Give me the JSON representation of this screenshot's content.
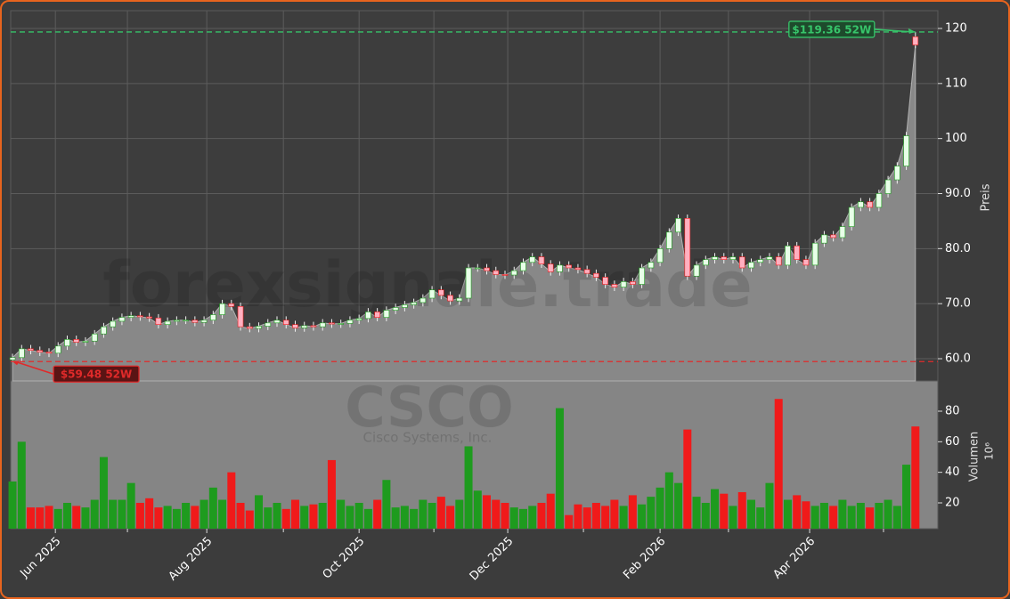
{
  "chart_data": {
    "type": "candlestick",
    "watermark": "forexsignale.trade",
    "symbol": "CSCO",
    "company": "Cisco Systems, Inc.",
    "ylabel": "Preis",
    "y2label": "Volumen",
    "y2unit": "10⁶",
    "xlim": [
      -0.2,
      101.46
    ],
    "xticks": [
      {
        "value": 4.7,
        "label": "Jun 2025"
      },
      {
        "value": 21.3,
        "label": "Aug 2025"
      },
      {
        "value": 38.0,
        "label": "Oct 2025"
      },
      {
        "value": 54.3,
        "label": "Dec 2025"
      },
      {
        "value": 71.0,
        "label": "Feb 2026"
      },
      {
        "value": 87.4,
        "label": "Apr 2026"
      }
    ],
    "minor_xticks": [
      12.6,
      29.7,
      46.2,
      62.6,
      78.5,
      95.5
    ],
    "ylim": [
      55.96,
      123.23
    ],
    "yticks": [
      {
        "value": 60,
        "label": "60.0"
      },
      {
        "value": 70,
        "label": "70.0"
      },
      {
        "value": 80,
        "label": "80.0"
      },
      {
        "value": 90,
        "label": "90.0"
      },
      {
        "value": 100,
        "label": "100"
      },
      {
        "value": 110,
        "label": "110"
      },
      {
        "value": 120,
        "label": "120"
      }
    ],
    "y2lim": [
      3.1,
      99.8
    ],
    "y2ticks": [
      20,
      40,
      60,
      80
    ],
    "grid": true,
    "up_color": "#1e9b1e",
    "down_color": "#f01a1a",
    "open": [
      59.8,
      60.2,
      61.8,
      61.5,
      61.2,
      61.0,
      62.3,
      63.5,
      63.0,
      63.2,
      64.5,
      65.8,
      66.8,
      67.5,
      67.8,
      67.6,
      67.4,
      66.2,
      66.8,
      67.0,
      67.0,
      66.6,
      67.0,
      68.0,
      70.0,
      69.5,
      65.8,
      65.5,
      65.9,
      66.5,
      67.0,
      66.2,
      65.6,
      66.0,
      65.8,
      66.5,
      66.3,
      66.4,
      67.0,
      67.3,
      68.5,
      67.5,
      68.8,
      69.3,
      69.8,
      70.2,
      71.0,
      72.5,
      71.5,
      70.5,
      71.0,
      76.5,
      76.5,
      76.0,
      75.3,
      75.2,
      76.0,
      77.5,
      78.5,
      77.2,
      75.8,
      77.0,
      76.5,
      76.2,
      75.5,
      74.8,
      73.5,
      73.0,
      74.0,
      73.5,
      76.5,
      77.5,
      80.0,
      83.0,
      85.5,
      75.0,
      77.0,
      78.0,
      78.5,
      78.0,
      78.5,
      76.5,
      77.5,
      78.0,
      78.5,
      77.0,
      80.5,
      78.0,
      77.0,
      81.0,
      82.5,
      82.0,
      84.0,
      87.5,
      88.5,
      87.5,
      90.0,
      92.5,
      95.0,
      118.5
    ],
    "high": [
      60.9,
      62.5,
      62.5,
      62.2,
      61.9,
      63.0,
      64.2,
      64.2,
      63.9,
      65.2,
      66.5,
      67.5,
      68.2,
      68.5,
      68.5,
      68.3,
      68.1,
      67.5,
      67.7,
      67.7,
      67.7,
      67.7,
      68.7,
      70.7,
      70.7,
      70.2,
      66.5,
      66.6,
      67.2,
      67.7,
      67.7,
      66.9,
      66.7,
      66.7,
      67.2,
      67.2,
      67.1,
      67.7,
      68.0,
      69.2,
      69.2,
      69.5,
      70.0,
      70.5,
      70.9,
      71.7,
      73.2,
      73.2,
      72.2,
      71.7,
      77.2,
      77.2,
      77.2,
      76.7,
      76.0,
      76.7,
      78.2,
      79.2,
      79.2,
      77.9,
      77.7,
      77.7,
      77.2,
      76.9,
      76.2,
      75.5,
      74.2,
      74.7,
      74.7,
      77.2,
      78.2,
      80.7,
      83.7,
      86.2,
      86.2,
      77.7,
      78.7,
      79.2,
      79.2,
      79.2,
      79.2,
      78.2,
      78.7,
      79.2,
      79.2,
      81.2,
      81.2,
      78.7,
      81.7,
      83.2,
      83.2,
      84.7,
      88.2,
      89.2,
      89.2,
      90.7,
      93.2,
      95.7,
      101.2,
      119.36
    ],
    "low": [
      59.48,
      59.5,
      60.8,
      60.5,
      60.3,
      60.3,
      61.6,
      62.3,
      62.3,
      62.5,
      63.8,
      65.1,
      66.1,
      66.8,
      66.9,
      66.7,
      65.5,
      65.5,
      66.1,
      66.3,
      65.9,
      65.9,
      66.3,
      67.3,
      68.8,
      65.1,
      64.8,
      64.8,
      65.2,
      65.8,
      65.5,
      64.9,
      64.9,
      65.1,
      65.1,
      65.6,
      65.6,
      65.7,
      66.3,
      66.6,
      66.8,
      66.8,
      68.1,
      68.6,
      69.1,
      69.5,
      70.3,
      70.8,
      69.8,
      69.8,
      70.3,
      75.8,
      75.3,
      74.6,
      74.5,
      74.5,
      75.3,
      76.8,
      76.5,
      75.1,
      75.1,
      75.8,
      75.5,
      74.8,
      74.1,
      72.8,
      72.3,
      72.3,
      72.8,
      72.8,
      75.8,
      76.8,
      79.3,
      82.3,
      74.3,
      74.3,
      76.3,
      77.3,
      77.3,
      77.3,
      75.8,
      75.8,
      76.8,
      77.3,
      76.3,
      76.3,
      77.3,
      76.3,
      76.3,
      80.3,
      81.3,
      81.3,
      83.3,
      86.8,
      86.8,
      86.8,
      89.3,
      91.8,
      94.3,
      116.4
    ],
    "close": [
      60.2,
      61.8,
      61.5,
      61.2,
      61.0,
      62.3,
      63.5,
      63.0,
      63.2,
      64.5,
      65.8,
      66.8,
      67.5,
      67.8,
      67.6,
      67.4,
      66.2,
      66.8,
      67.0,
      67.0,
      66.6,
      67.0,
      68.0,
      70.0,
      69.5,
      65.8,
      65.5,
      65.9,
      66.5,
      67.0,
      66.2,
      65.6,
      66.0,
      65.8,
      66.5,
      66.3,
      66.4,
      67.0,
      67.3,
      68.5,
      67.5,
      68.8,
      69.3,
      69.8,
      70.2,
      71.0,
      72.5,
      71.5,
      70.5,
      71.0,
      76.5,
      76.5,
      76.0,
      75.3,
      75.2,
      76.0,
      77.5,
      78.5,
      77.2,
      75.8,
      77.0,
      76.5,
      76.2,
      75.5,
      74.8,
      73.5,
      73.0,
      74.0,
      73.5,
      76.5,
      77.5,
      80.0,
      83.0,
      85.5,
      75.0,
      77.0,
      78.0,
      78.5,
      78.0,
      78.5,
      76.5,
      77.5,
      78.0,
      78.5,
      77.0,
      80.5,
      78.0,
      77.0,
      81.0,
      82.5,
      82.0,
      84.0,
      87.5,
      88.5,
      87.5,
      90.0,
      92.5,
      95.0,
      100.5,
      117.0
    ],
    "volume": [
      34,
      60,
      17,
      17,
      18,
      16,
      20,
      18,
      17,
      22,
      50,
      22,
      22,
      33,
      20,
      23,
      17,
      18,
      16,
      20,
      18,
      22,
      30,
      22,
      40,
      20,
      15,
      25,
      17,
      20,
      16,
      22,
      18,
      19,
      20,
      48,
      22,
      18,
      20,
      16,
      22,
      35,
      17,
      18,
      16,
      22,
      20,
      24,
      18,
      22,
      57,
      28,
      25,
      22,
      20,
      17,
      16,
      18,
      20,
      26,
      82,
      12,
      19,
      17,
      20,
      18,
      22,
      18,
      25,
      19,
      24,
      30,
      40,
      33,
      68,
      24,
      20,
      29,
      26,
      18,
      27,
      22,
      17,
      33,
      88,
      22,
      25,
      21,
      18,
      20,
      18,
      22,
      18,
      20,
      17,
      20,
      22,
      18,
      45,
      70
    ],
    "annotations": [
      {
        "value": 119.36,
        "label": "$119.36 52W",
        "color": "#37c46a"
      },
      {
        "value": 59.48,
        "label": "$59.48 52W",
        "color": "#e02a2a"
      }
    ]
  }
}
